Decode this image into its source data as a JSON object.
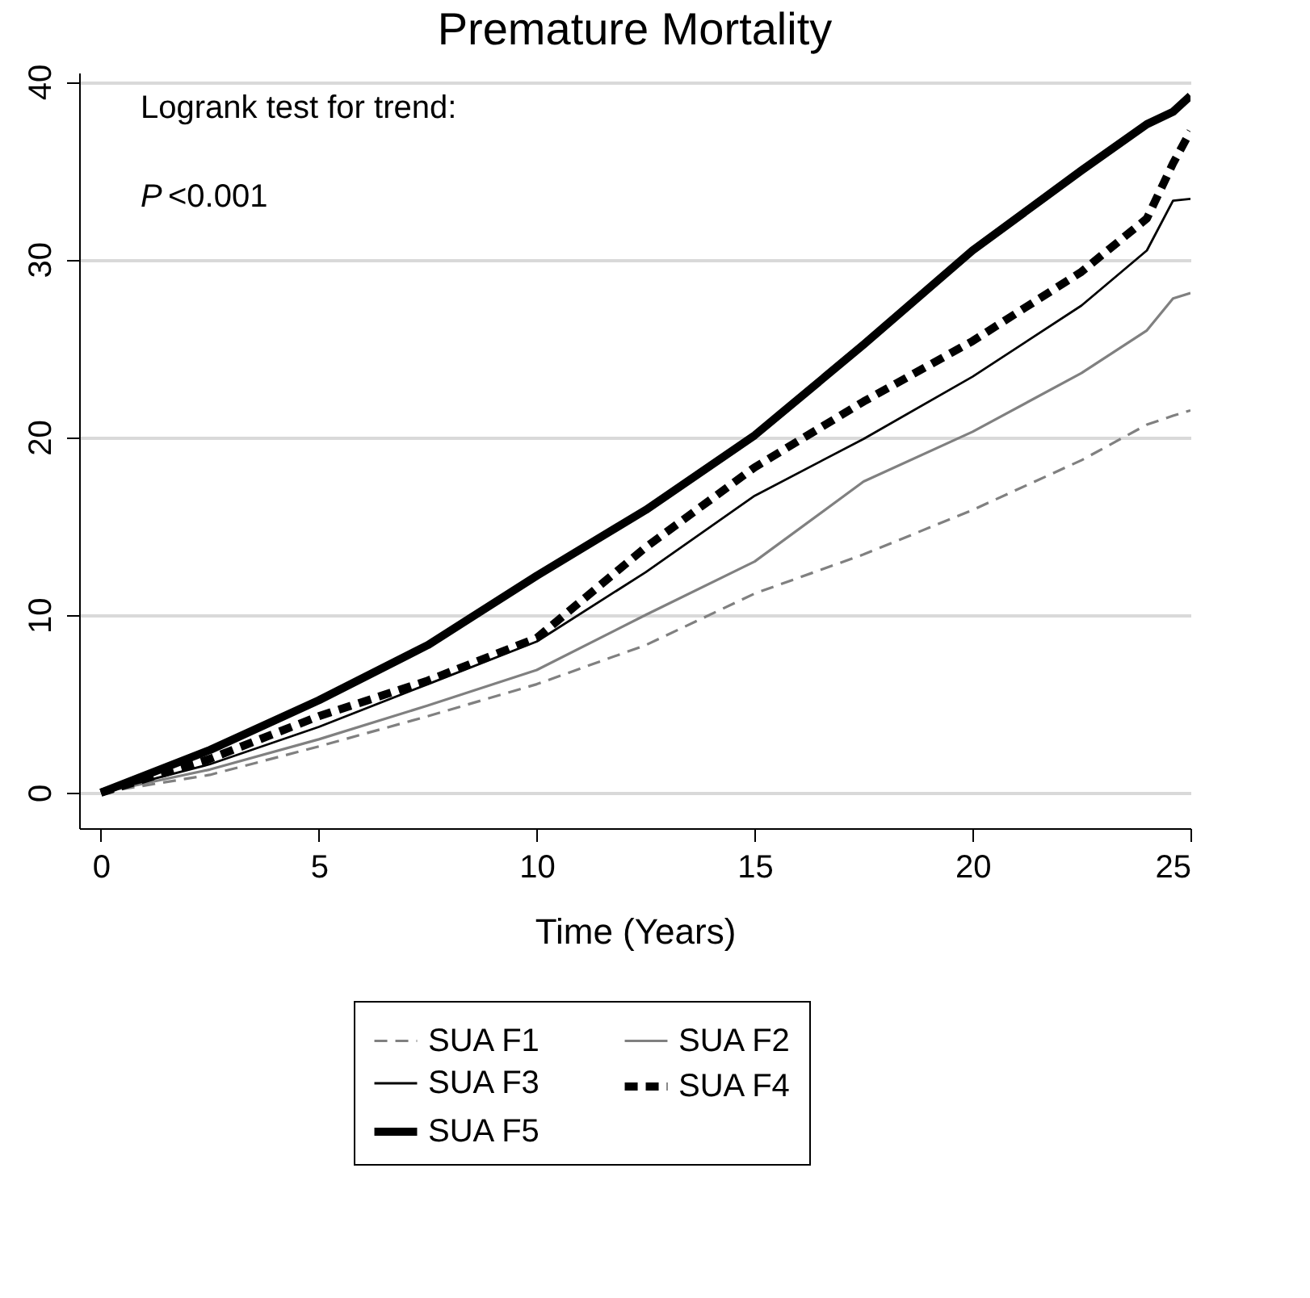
{
  "chart_data": {
    "type": "line",
    "title": "Premature Mortality",
    "xlabel": "Time (Years)",
    "xlim": [
      -0.5,
      25
    ],
    "xticks": [
      0,
      5,
      10,
      15,
      20,
      25
    ],
    "ylim": [
      -2,
      40.5
    ],
    "yticks": [
      0,
      10,
      20,
      30,
      40
    ],
    "grid": "y",
    "legend": "bottom",
    "marker": "none",
    "annotations": [
      "Logrank test for trend:",
      "P <0.001"
    ],
    "x": [
      0,
      2.5,
      5,
      7.5,
      10,
      12.5,
      15,
      17.5,
      20,
      22.5,
      24,
      24.6,
      25
    ],
    "series": [
      {
        "name": "SUA F1",
        "color": "#808080",
        "line_style": "dashed",
        "values": [
          0,
          1.0,
          2.6,
          4.3,
          6.1,
          8.3,
          11.2,
          13.4,
          15.9,
          18.7,
          20.7,
          21.2,
          21.5
        ]
      },
      {
        "name": "SUA F2",
        "color": "#808080",
        "line_style": "solid",
        "values": [
          0,
          1.3,
          3.0,
          4.9,
          6.9,
          10.0,
          13.0,
          17.5,
          20.3,
          23.6,
          26.0,
          27.8,
          28.1
        ]
      },
      {
        "name": "SUA F3",
        "color": "#000000",
        "line_style": "solid",
        "values": [
          0,
          1.6,
          3.7,
          6.1,
          8.5,
          12.4,
          16.7,
          19.9,
          23.4,
          27.4,
          30.5,
          33.3,
          33.4
        ]
      },
      {
        "name": "SUA F4",
        "color": "#000000",
        "line_style": "dashed",
        "values": [
          0,
          1.9,
          4.3,
          6.3,
          8.7,
          13.8,
          18.3,
          22.0,
          25.4,
          29.3,
          32.3,
          35.4,
          37.2
        ]
      },
      {
        "name": "SUA F5",
        "color": "#000000",
        "line_style": "solid",
        "values": [
          0,
          2.4,
          5.2,
          8.3,
          12.2,
          15.9,
          20.1,
          25.2,
          30.5,
          35.0,
          37.6,
          38.3,
          39.2
        ]
      }
    ]
  }
}
